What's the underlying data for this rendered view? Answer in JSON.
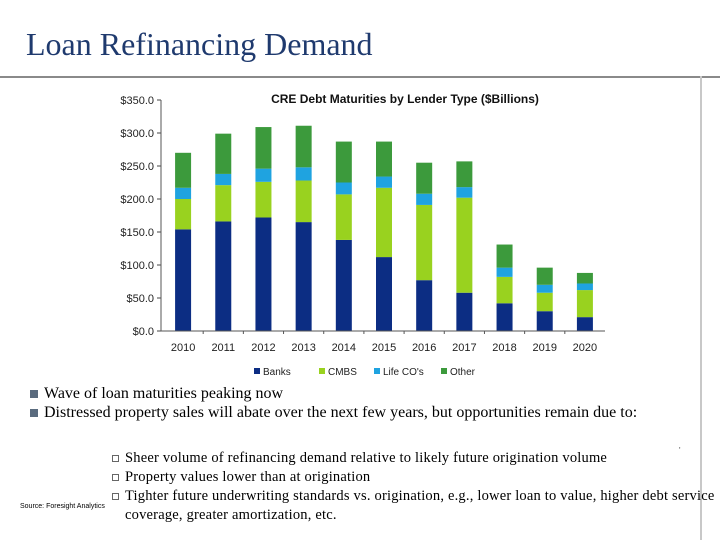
{
  "slide": {
    "title": "Loan Refinancing Demand",
    "bullets": [
      "Wave of loan maturities peaking now",
      "Distressed property sales will abate over the next few years, but opportunities remain due to:"
    ],
    "sub_bullets": [
      "Sheer volume of refinancing demand relative to likely future origination volume",
      "Property values lower than at origination",
      "Tighter future underwriting standards vs. origination, e.g., lower loan to value, higher debt service coverage, greater amortization, etc."
    ],
    "source": "Source: Foresight Analytics",
    "mark": "'"
  },
  "chart_data": {
    "type": "bar",
    "stacked": true,
    "title": "CRE Debt Maturities by Lender Type ($Billions)",
    "categories": [
      "2010",
      "2011",
      "2012",
      "2013",
      "2014",
      "2015",
      "2016",
      "2017",
      "2018",
      "2019",
      "2020"
    ],
    "series": [
      {
        "name": "Banks",
        "color": "#0c2d83",
        "values": [
          154,
          166,
          172,
          165,
          138,
          112,
          77,
          58,
          42,
          30,
          21
        ]
      },
      {
        "name": "CMBS",
        "color": "#99d21f",
        "values": [
          46,
          55,
          54,
          63,
          69,
          105,
          114,
          144,
          40,
          28,
          41
        ]
      },
      {
        "name": "Life CO's",
        "color": "#1fa3e0",
        "values": [
          17,
          17,
          20,
          20,
          18,
          17,
          17,
          16,
          14,
          12,
          10
        ]
      },
      {
        "name": "Other",
        "color": "#3c9a3c",
        "values": [
          53,
          61,
          63,
          63,
          62,
          53,
          47,
          39,
          35,
          26,
          16
        ]
      }
    ],
    "ylim": [
      0,
      350
    ],
    "yticks": [
      "$0.0",
      "$50.0",
      "$100.0",
      "$150.0",
      "$200.0",
      "$250.0",
      "$300.0",
      "$350.0"
    ],
    "ytick_values": [
      0,
      50,
      100,
      150,
      200,
      250,
      300,
      350
    ],
    "legend": "bottom",
    "grid": false
  }
}
